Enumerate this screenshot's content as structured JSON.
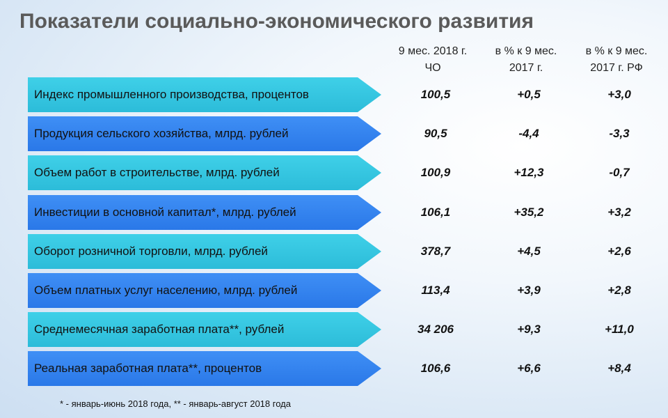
{
  "title": "Показатели социально-экономического развития",
  "columns": [
    {
      "line1": "9 мес. 2018 г.",
      "line2": "ЧО"
    },
    {
      "line1": "в % к 9 мес.",
      "line2": "2017 г."
    },
    {
      "line1": "в % к 9 мес.",
      "line2": "2017 г. РФ"
    }
  ],
  "colors": {
    "arrow_light": "#2cbcd9",
    "arrow_dark": "#2a78e8",
    "title": "#5a5a5a"
  },
  "rows": [
    {
      "label": "Индекс промышленного производства, процентов",
      "value": "100,5",
      "change_region": "+0,5",
      "change_rf": "+3,0"
    },
    {
      "label": "Продукция сельского хозяйства, млрд. рублей",
      "value": "90,5",
      "change_region": "-4,4",
      "change_rf": "-3,3"
    },
    {
      "label": "Объем работ в строительстве, млрд. рублей",
      "value": "100,9",
      "change_region": "+12,3",
      "change_rf": "-0,7"
    },
    {
      "label": "Инвестиции в основной капитал*, млрд. рублей",
      "value": "106,1",
      "change_region": "+35,2",
      "change_rf": "+3,2"
    },
    {
      "label": "Оборот розничной торговли, млрд. рублей",
      "value": "378,7",
      "change_region": "+4,5",
      "change_rf": "+2,6"
    },
    {
      "label": "Объем платных услуг населению, млрд. рублей",
      "value": "113,4",
      "change_region": "+3,9",
      "change_rf": "+2,8"
    },
    {
      "label": "Среднемесячная заработная плата**, рублей",
      "value": "34 206",
      "change_region": "+9,3",
      "change_rf": "+11,0"
    },
    {
      "label": "Реальная заработная плата**, процентов",
      "value": "106,6",
      "change_region": "+6,6",
      "change_rf": "+8,4"
    }
  ],
  "footnote": "* - январь-июнь 2018 года, ** - январь-август 2018 года"
}
